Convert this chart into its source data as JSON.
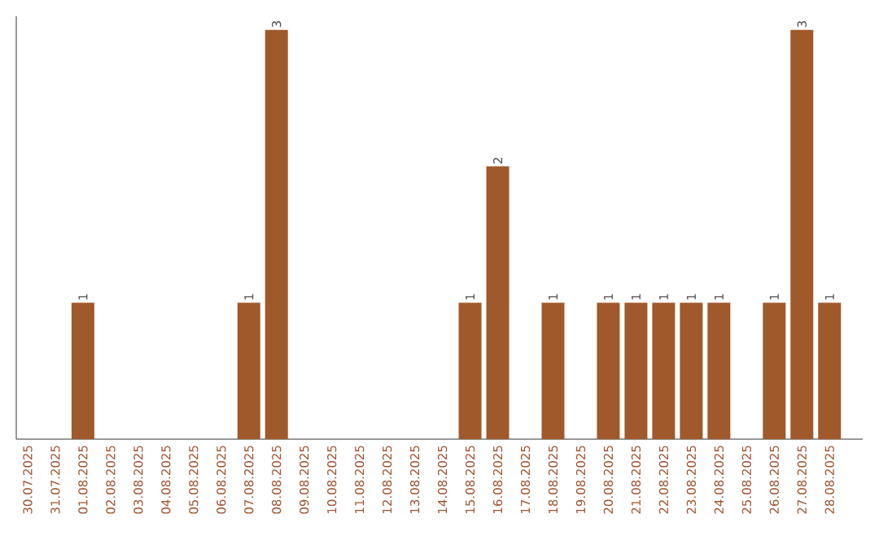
{
  "chart_data": {
    "type": "bar",
    "categories": [
      "30.07.2025",
      "31.07.2025",
      "01.08.2025",
      "02.08.2025",
      "03.08.2025",
      "04.08.2025",
      "05.08.2025",
      "06.08.2025",
      "07.08.2025",
      "08.08.2025",
      "09.08.2025",
      "10.08.2025",
      "11.08.2025",
      "12.08.2025",
      "13.08.2025",
      "14.08.2025",
      "15.08.2025",
      "16.08.2025",
      "17.08.2025",
      "18.08.2025",
      "19.08.2025",
      "20.08.2025",
      "21.08.2025",
      "22.08.2025",
      "23.08.2025",
      "24.08.2025",
      "25.08.2025",
      "26.08.2025",
      "27.08.2025",
      "28.08.2025"
    ],
    "values": [
      0,
      0,
      1,
      0,
      0,
      0,
      0,
      0,
      1,
      3,
      0,
      0,
      0,
      0,
      0,
      0,
      1,
      2,
      0,
      1,
      0,
      1,
      1,
      1,
      1,
      1,
      0,
      1,
      3,
      1
    ],
    "value_labels": [
      null,
      null,
      "1",
      null,
      null,
      null,
      null,
      null,
      "1",
      "3",
      null,
      null,
      null,
      null,
      null,
      null,
      "1",
      "2",
      null,
      "1",
      null,
      "1",
      "1",
      "1",
      "1",
      "1",
      null,
      "1",
      "3",
      "1"
    ],
    "color": "#a0592a",
    "ylim": [
      0,
      3.1
    ],
    "tick_labels": "x",
    "grid": false
  }
}
